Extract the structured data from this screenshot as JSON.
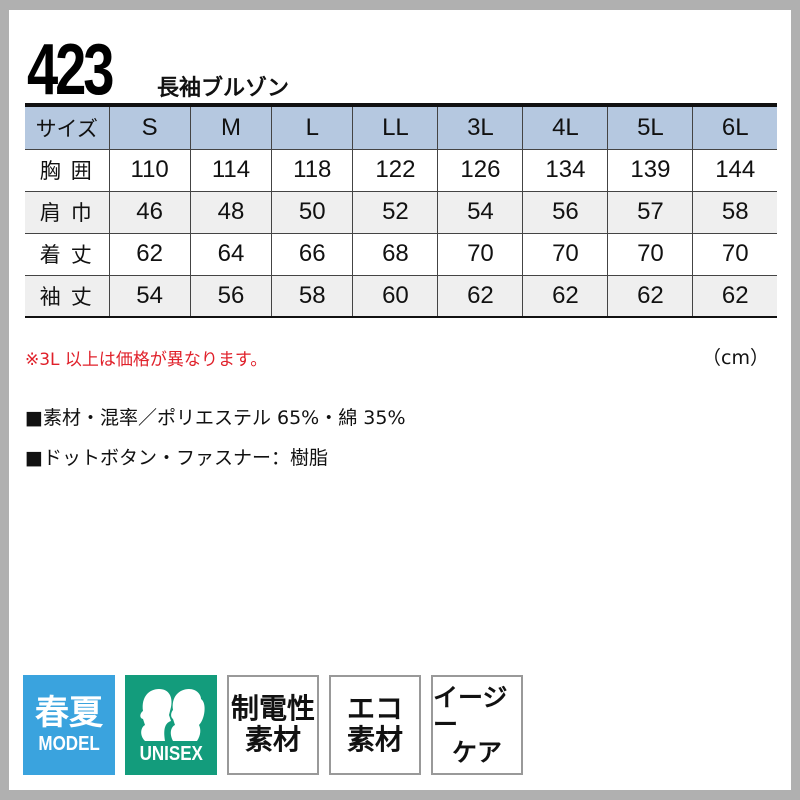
{
  "header": {
    "model_number": "423",
    "subtitle": "長袖ブルゾン"
  },
  "table": {
    "headers": [
      "サイズ",
      "S",
      "M",
      "L",
      "LL",
      "3L",
      "4L",
      "5L",
      "6L"
    ],
    "rows": [
      [
        "胸囲",
        "110",
        "114",
        "118",
        "122",
        "126",
        "134",
        "139",
        "144"
      ],
      [
        "肩巾",
        "46",
        "48",
        "50",
        "52",
        "54",
        "56",
        "57",
        "58"
      ],
      [
        "着丈",
        "62",
        "64",
        "66",
        "68",
        "70",
        "70",
        "70",
        "70"
      ],
      [
        "袖丈",
        "54",
        "56",
        "58",
        "60",
        "62",
        "62",
        "62",
        "62"
      ]
    ]
  },
  "note": "※3L 以上は価格が異なります。",
  "unit": "（cm）",
  "specs": [
    "■素材・混率／ポリエステル 65%・綿 35%",
    "■ドットボタン・ファスナー：樹脂"
  ],
  "badges": {
    "season": {
      "line1": "春夏",
      "line2": "MODEL",
      "color": "#3aa3de"
    },
    "unisex": {
      "label": "UNISEX",
      "icon": "male-female-silhouette-icon",
      "color": "#139c7c"
    },
    "antistatic": {
      "line1": "制電性",
      "line2": "素材"
    },
    "eco": {
      "line1": "エコ",
      "line2": "素材"
    },
    "easycare": {
      "line1": "イージー",
      "line2": "ケア"
    }
  }
}
